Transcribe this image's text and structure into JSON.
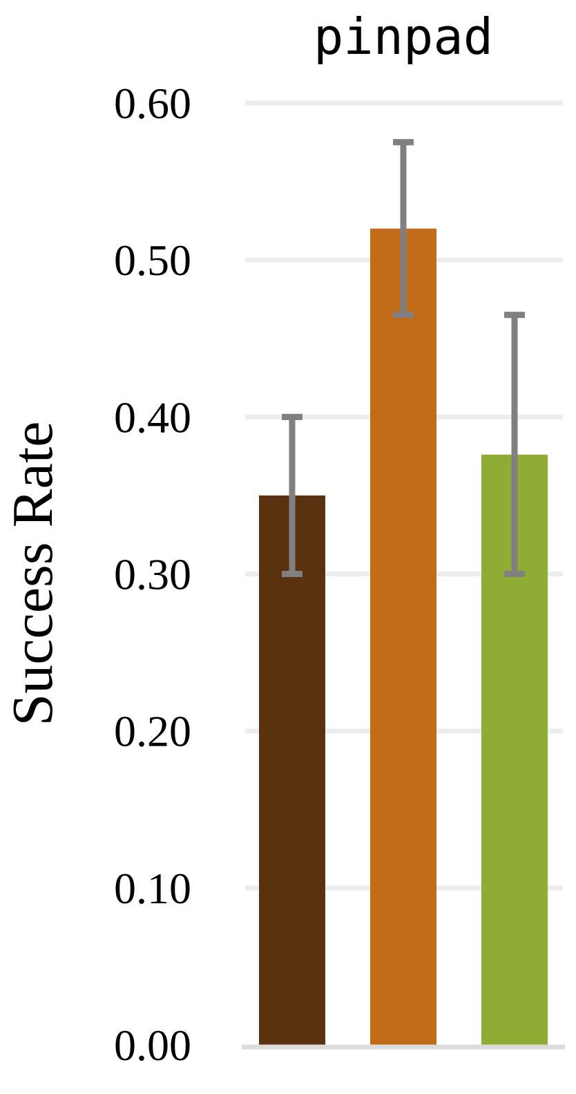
{
  "chart_data": {
    "type": "bar",
    "title": "pinpad",
    "ylabel": "Success Rate",
    "xlabel": "",
    "ylim": [
      0,
      0.6
    ],
    "yticks": [
      "0.00",
      "0.10",
      "0.20",
      "0.30",
      "0.40",
      "0.50",
      "0.60"
    ],
    "grid": true,
    "legend": "none",
    "series": [
      {
        "value": 0.35,
        "error_low": 0.3,
        "error_high": 0.4,
        "color": "#5b320f"
      },
      {
        "value": 0.52,
        "error_low": 0.465,
        "error_high": 0.575,
        "color": "#c26c1a"
      },
      {
        "value": 0.376,
        "error_low": 0.3,
        "error_high": 0.465,
        "color": "#8fad34"
      }
    ],
    "gridline_color": "#ededed",
    "errorbar_color": "#808080"
  }
}
